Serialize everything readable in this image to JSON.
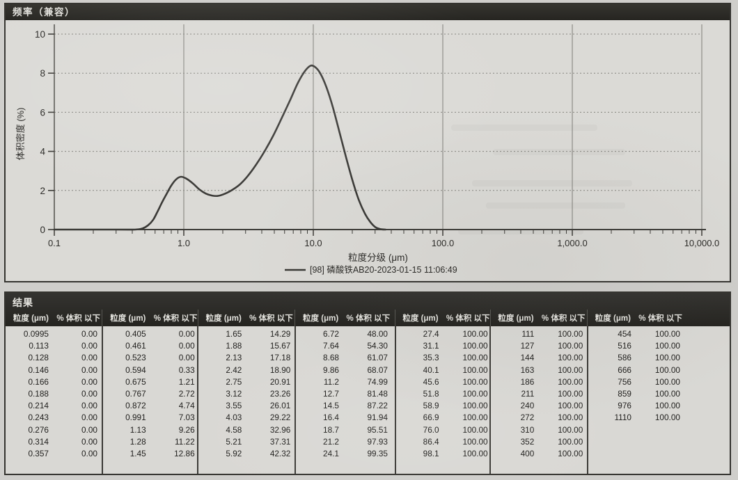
{
  "frequency_panel": {
    "title": "频率（兼容）"
  },
  "chart_data": {
    "type": "line",
    "title": "频率（兼容）",
    "xlabel": "粒度分级 (μm)",
    "ylabel": "体积密度 (%)",
    "x_scale": "log",
    "xlim": [
      0.1,
      10000
    ],
    "x_tick_labels": [
      "0.1",
      "1.0",
      "10.0",
      "100.0",
      "1,000.0",
      "10,000.0"
    ],
    "ylim": [
      0,
      10
    ],
    "y_ticks": [
      0,
      2,
      4,
      6,
      8,
      10
    ],
    "grid": true,
    "legend_position": "bottom",
    "line_color": "#3a3936",
    "series": [
      {
        "name": "[98] 磷酸铁AB20-2023-01-15 11:06:49",
        "points": [
          [
            0.1,
            0
          ],
          [
            0.3,
            0
          ],
          [
            0.42,
            0
          ],
          [
            0.48,
            0.06
          ],
          [
            0.53,
            0.22
          ],
          [
            0.58,
            0.5
          ],
          [
            0.63,
            0.95
          ],
          [
            0.68,
            1.4
          ],
          [
            0.74,
            1.85
          ],
          [
            0.8,
            2.25
          ],
          [
            0.87,
            2.56
          ],
          [
            0.95,
            2.7
          ],
          [
            1.05,
            2.6
          ],
          [
            1.18,
            2.35
          ],
          [
            1.32,
            2.05
          ],
          [
            1.48,
            1.84
          ],
          [
            1.65,
            1.74
          ],
          [
            1.82,
            1.72
          ],
          [
            2.0,
            1.79
          ],
          [
            2.3,
            1.98
          ],
          [
            2.7,
            2.3
          ],
          [
            3.1,
            2.72
          ],
          [
            3.6,
            3.3
          ],
          [
            4.2,
            4.0
          ],
          [
            4.9,
            4.8
          ],
          [
            5.7,
            5.7
          ],
          [
            6.6,
            6.6
          ],
          [
            7.6,
            7.5
          ],
          [
            8.6,
            8.1
          ],
          [
            9.5,
            8.38
          ],
          [
            10.3,
            8.32
          ],
          [
            11.3,
            8.0
          ],
          [
            12.6,
            7.3
          ],
          [
            14.1,
            6.3
          ],
          [
            15.9,
            5.0
          ],
          [
            17.9,
            3.7
          ],
          [
            20.1,
            2.5
          ],
          [
            22.5,
            1.5
          ],
          [
            25.1,
            0.8
          ],
          [
            27.6,
            0.38
          ],
          [
            30.2,
            0.12
          ],
          [
            33.1,
            0.02
          ],
          [
            36.2,
            0
          ]
        ]
      }
    ]
  },
  "results_panel": {
    "title": "结果",
    "column_headers": {
      "size": "粒度 (μm)",
      "pct": "% 体积 以下"
    },
    "groups": [
      [
        [
          "0.0995",
          "0.00"
        ],
        [
          "0.113",
          "0.00"
        ],
        [
          "0.128",
          "0.00"
        ],
        [
          "0.146",
          "0.00"
        ],
        [
          "0.166",
          "0.00"
        ],
        [
          "0.188",
          "0.00"
        ],
        [
          "0.214",
          "0.00"
        ],
        [
          "0.243",
          "0.00"
        ],
        [
          "0.276",
          "0.00"
        ],
        [
          "0.314",
          "0.00"
        ],
        [
          "0.357",
          "0.00"
        ]
      ],
      [
        [
          "0.405",
          "0.00"
        ],
        [
          "0.461",
          "0.00"
        ],
        [
          "0.523",
          "0.00"
        ],
        [
          "0.594",
          "0.33"
        ],
        [
          "0.675",
          "1.21"
        ],
        [
          "0.767",
          "2.72"
        ],
        [
          "0.872",
          "4.74"
        ],
        [
          "0.991",
          "7.03"
        ],
        [
          "1.13",
          "9.26"
        ],
        [
          "1.28",
          "11.22"
        ],
        [
          "1.45",
          "12.86"
        ]
      ],
      [
        [
          "1.65",
          "14.29"
        ],
        [
          "1.88",
          "15.67"
        ],
        [
          "2.13",
          "17.18"
        ],
        [
          "2.42",
          "18.90"
        ],
        [
          "2.75",
          "20.91"
        ],
        [
          "3.12",
          "23.26"
        ],
        [
          "3.55",
          "26.01"
        ],
        [
          "4.03",
          "29.22"
        ],
        [
          "4.58",
          "32.96"
        ],
        [
          "5.21",
          "37.31"
        ],
        [
          "5.92",
          "42.32"
        ]
      ],
      [
        [
          "6.72",
          "48.00"
        ],
        [
          "7.64",
          "54.30"
        ],
        [
          "8.68",
          "61.07"
        ],
        [
          "9.86",
          "68.07"
        ],
        [
          "11.2",
          "74.99"
        ],
        [
          "12.7",
          "81.48"
        ],
        [
          "14.5",
          "87.22"
        ],
        [
          "16.4",
          "91.94"
        ],
        [
          "18.7",
          "95.51"
        ],
        [
          "21.2",
          "97.93"
        ],
        [
          "24.1",
          "99.35"
        ]
      ],
      [
        [
          "27.4",
          "100.00"
        ],
        [
          "31.1",
          "100.00"
        ],
        [
          "35.3",
          "100.00"
        ],
        [
          "40.1",
          "100.00"
        ],
        [
          "45.6",
          "100.00"
        ],
        [
          "51.8",
          "100.00"
        ],
        [
          "58.9",
          "100.00"
        ],
        [
          "66.9",
          "100.00"
        ],
        [
          "76.0",
          "100.00"
        ],
        [
          "86.4",
          "100.00"
        ],
        [
          "98.1",
          "100.00"
        ]
      ],
      [
        [
          "111",
          "100.00"
        ],
        [
          "127",
          "100.00"
        ],
        [
          "144",
          "100.00"
        ],
        [
          "163",
          "100.00"
        ],
        [
          "186",
          "100.00"
        ],
        [
          "211",
          "100.00"
        ],
        [
          "240",
          "100.00"
        ],
        [
          "272",
          "100.00"
        ],
        [
          "310",
          "100.00"
        ],
        [
          "352",
          "100.00"
        ],
        [
          "400",
          "100.00"
        ]
      ],
      [
        [
          "454",
          "100.00"
        ],
        [
          "516",
          "100.00"
        ],
        [
          "586",
          "100.00"
        ],
        [
          "666",
          "100.00"
        ],
        [
          "756",
          "100.00"
        ],
        [
          "859",
          "100.00"
        ],
        [
          "976",
          "100.00"
        ],
        [
          "1110",
          "100.00"
        ]
      ]
    ]
  }
}
